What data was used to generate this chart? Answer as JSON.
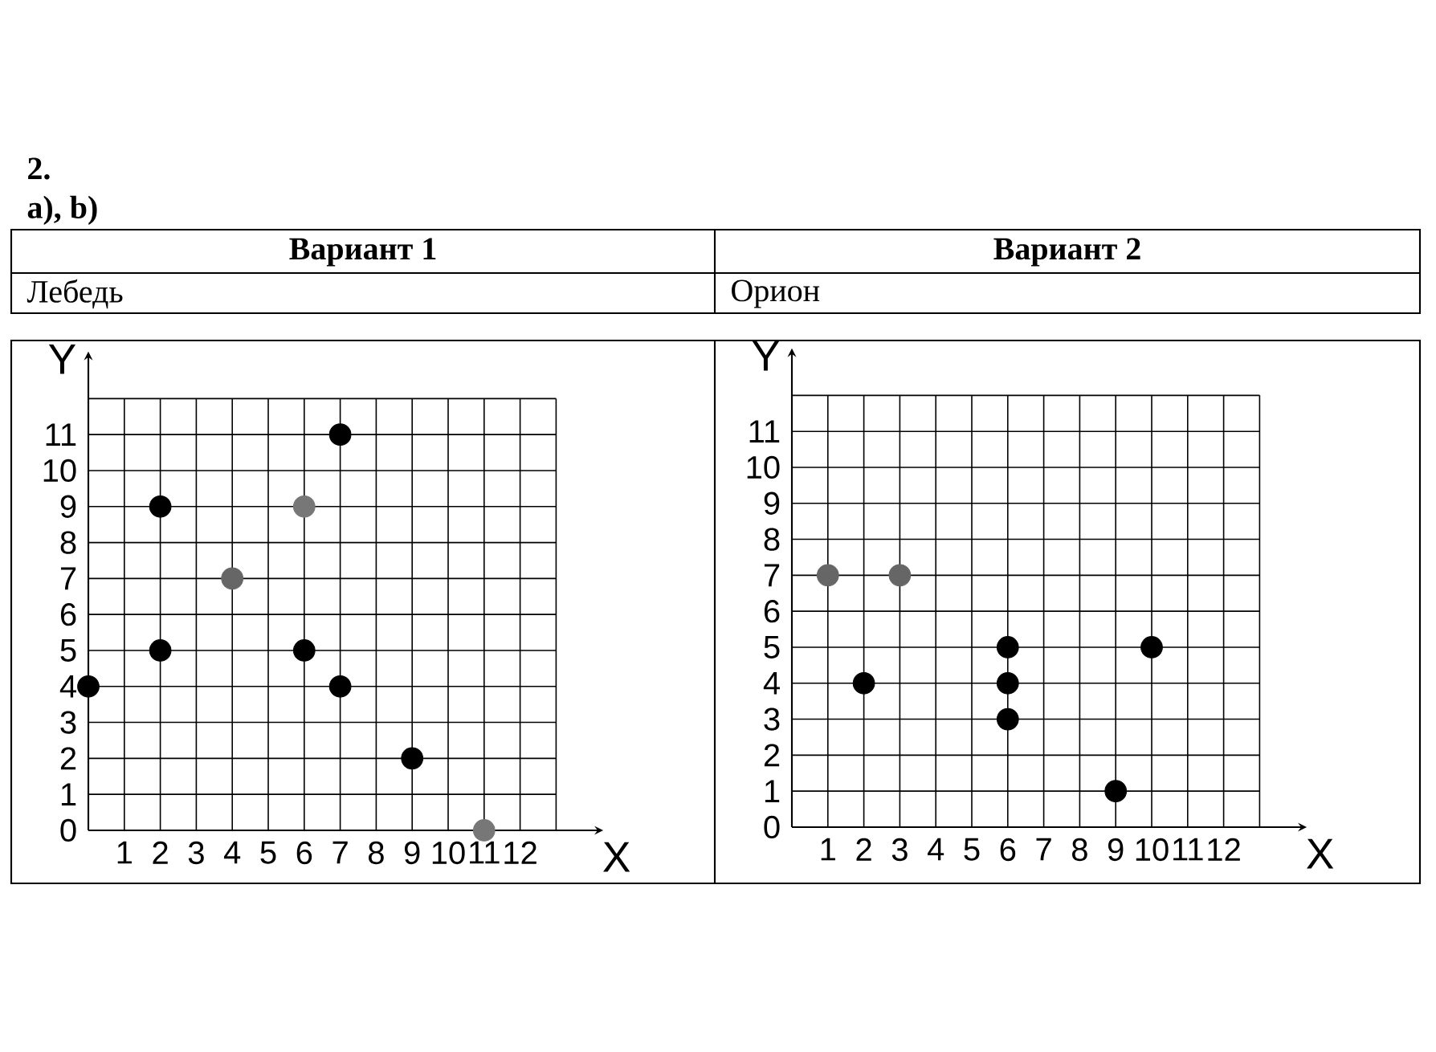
{
  "chart_data": [
    {
      "type": "scatter",
      "title": "Вариант 1",
      "subtitle": "Лебедь",
      "xlabel": "X",
      "ylabel": "Y",
      "x": [
        0,
        2,
        2,
        4,
        6,
        6,
        7,
        7,
        9,
        11
      ],
      "values": [
        4,
        5,
        9,
        7,
        9,
        5,
        4,
        11,
        2,
        0
      ],
      "colors": [
        "#000000",
        "#000000",
        "#000000",
        "#666666",
        "#777777",
        "#000000",
        "#000000",
        "#000000",
        "#000000",
        "#777777"
      ],
      "xlim": [
        0,
        13
      ],
      "ylim": [
        0,
        12
      ],
      "xticks": [
        1,
        2,
        3,
        4,
        5,
        6,
        7,
        8,
        9,
        10,
        11,
        12,
        {
          "value": 13,
          "label": null
        }
      ],
      "yticks": [
        0,
        1,
        2,
        3,
        4,
        5,
        6,
        7,
        8,
        9,
        10,
        11,
        {
          "value": 12,
          "label": null
        }
      ],
      "grid": true,
      "annotations": [
        "2.",
        "a), b)"
      ]
    },
    {
      "type": "scatter",
      "title": "Вариант 2",
      "subtitle": "Орион",
      "xlabel": "X",
      "ylabel": "Y",
      "x": [
        1,
        3,
        2,
        6,
        6,
        6,
        10,
        9
      ],
      "values": [
        7,
        7,
        4,
        5,
        4,
        3,
        5,
        1
      ],
      "colors": [
        "#666666",
        "#666666",
        "#000000",
        "#000000",
        "#000000",
        "#000000",
        "#000000",
        "#000000"
      ],
      "xlim": [
        0,
        13
      ],
      "ylim": [
        0,
        12
      ],
      "xticks": [
        1,
        2,
        3,
        4,
        5,
        6,
        7,
        8,
        9,
        10,
        11,
        12,
        {
          "value": 13,
          "label": null
        }
      ],
      "yticks": [
        0,
        1,
        2,
        3,
        4,
        5,
        6,
        7,
        8,
        9,
        10,
        11,
        {
          "value": 12,
          "label": null
        }
      ],
      "grid": true
    }
  ]
}
